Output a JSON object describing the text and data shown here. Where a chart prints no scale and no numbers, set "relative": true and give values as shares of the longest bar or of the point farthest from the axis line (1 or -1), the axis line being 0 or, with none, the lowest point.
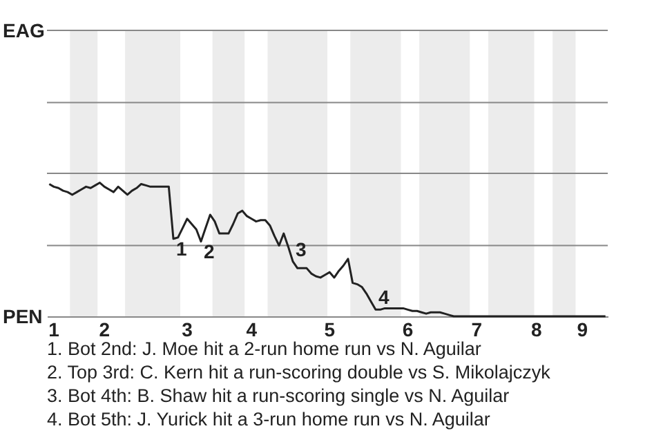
{
  "chart_data": {
    "type": "line",
    "categories": [
      null,
      "1",
      null,
      null,
      null,
      null,
      null,
      null,
      null,
      null,
      null,
      null,
      "2",
      null,
      null,
      null,
      null,
      null,
      null,
      null,
      null,
      null,
      null,
      null,
      null,
      null,
      null,
      null,
      null,
      null,
      "3",
      null,
      null,
      null,
      null,
      null,
      null,
      null,
      null,
      null,
      null,
      null,
      null,
      null,
      "4",
      null,
      null,
      null,
      null,
      null,
      null,
      null,
      null,
      null,
      null,
      null,
      null,
      null,
      null,
      null,
      null,
      "5",
      null,
      null,
      null,
      null,
      null,
      null,
      null,
      null,
      null,
      null,
      null,
      null,
      null,
      null,
      null,
      null,
      "6",
      null,
      null,
      null,
      null,
      null,
      null,
      null,
      null,
      null,
      null,
      null,
      null,
      null,
      null,
      "7",
      null,
      null,
      null,
      null,
      null,
      null,
      null,
      null,
      null,
      null,
      null,
      null,
      "8",
      null,
      null,
      null,
      null,
      null,
      null,
      null,
      null,
      null,
      "9",
      null,
      null,
      null,
      null,
      null
    ],
    "series": [
      {
        "color": "#222222",
        "values": [
          0.99,
          0.97,
          0.96,
          0.94,
          0.93,
          0.91,
          0.93,
          0.95,
          0.97,
          0.96,
          0.98,
          1,
          0.97,
          0.95,
          0.93,
          0.97,
          0.94,
          0.91,
          0.94,
          0.96,
          0.99,
          0.98,
          0.97,
          0.97,
          0.97,
          0.97,
          0.97,
          0.58,
          0.59,
          0.66,
          0.73,
          0.69,
          0.65,
          0.56,
          0.66,
          0.76,
          0.71,
          0.62,
          0.62,
          0.62,
          0.69,
          0.77,
          0.79,
          0.75,
          0.73,
          0.71,
          0.72,
          0.72,
          0.68,
          0.6,
          0.53,
          0.62,
          0.52,
          0.41,
          0.36,
          0.36,
          0.36,
          0.32,
          0.3,
          0.29,
          0.31,
          0.33,
          0.29,
          0.34,
          0.38,
          0.43,
          0.25,
          0.24,
          0.22,
          0.17,
          0.11,
          0.05,
          0.05,
          0.06,
          0.06,
          0.06,
          0.06,
          0.06,
          0.05,
          0.04,
          0.04,
          0.03,
          0.02,
          0.03,
          0.03,
          0.03,
          0.02,
          0.01,
          0,
          0,
          0,
          0,
          0,
          0,
          0,
          0,
          0,
          0,
          0,
          0,
          0,
          0,
          0,
          0,
          0,
          0,
          0,
          0,
          0,
          0,
          0,
          0,
          0,
          0,
          0,
          0,
          0,
          0,
          0,
          0,
          0,
          0
        ]
      }
    ],
    "relative": true,
    "marker": "none",
    "line_style": "solid",
    "ref_lines": [
      {
        "axis": "y",
        "value": 0.53,
        "color": "#888888"
      },
      {
        "axis": "y",
        "value": 1.07,
        "color": "#888888"
      },
      {
        "axis": "y",
        "value": 1.6,
        "color": "#888888"
      },
      {
        "axis": "y",
        "value": 2.14,
        "color": "#888888"
      }
    ],
    "annotations": [
      {
        "text": "1",
        "y": 0.58
      },
      {
        "text": "2",
        "y": 0.56
      },
      {
        "text": "3",
        "y": 0.41
      },
      {
        "text": "4",
        "y": 0.05
      },
      "EAG",
      "PEN",
      "1. Bot 2nd: J. Moe hit a 2-run home run vs N. Aguilar",
      "2. Top 3rd: C. Kern hit a run-scoring double vs S. Mikolajczyk",
      "3. Bot 4th: B. Shaw hit a run-scoring single vs N. Aguilar",
      "4. Bot 5th: J. Yurick hit a 3-run home run vs N. Aguilar"
    ]
  }
}
